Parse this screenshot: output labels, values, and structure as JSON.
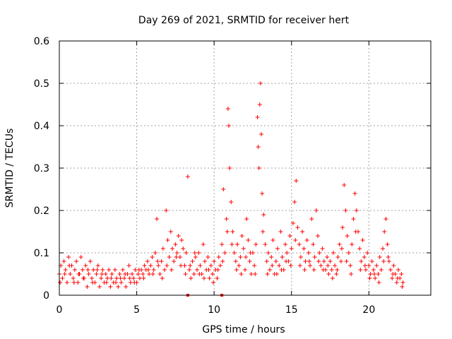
{
  "chart_data": {
    "type": "scatter",
    "title": "Day 269 of 2021, SRMTID for receiver hert",
    "xlabel": "GPS time / hours",
    "ylabel": "SRMTID / TECUs",
    "xlim": [
      0,
      24
    ],
    "ylim": [
      0,
      0.6
    ],
    "xticks": [
      0,
      5,
      10,
      15,
      20
    ],
    "yticks": [
      0,
      0.1,
      0.2,
      0.3,
      0.4,
      0.5,
      0.6
    ],
    "xtick_labels": [
      "0",
      "5",
      "10",
      "15",
      "20"
    ],
    "ytick_labels": [
      "0",
      "0.1",
      "0.2",
      "0.3",
      "0.4",
      "0.5",
      "0.6"
    ],
    "grid": true,
    "marker": "+",
    "series_color": "#ff0000",
    "series": [
      {
        "name": "SRMTID",
        "points": [
          [
            0.0,
            0.05
          ],
          [
            0.1,
            0.07
          ],
          [
            0.2,
            0.04
          ],
          [
            0.3,
            0.08
          ],
          [
            0.4,
            0.06
          ],
          [
            0.5,
            0.03
          ],
          [
            0.6,
            0.09
          ],
          [
            0.7,
            0.05
          ],
          [
            0.8,
            0.07
          ],
          [
            0.9,
            0.04
          ],
          [
            1.0,
            0.06
          ],
          [
            1.1,
            0.08
          ],
          [
            1.2,
            0.03
          ],
          [
            1.3,
            0.05
          ],
          [
            1.4,
            0.09
          ],
          [
            1.5,
            0.06
          ],
          [
            1.6,
            0.04
          ],
          [
            1.7,
            0.07
          ],
          [
            1.8,
            0.02
          ],
          [
            1.9,
            0.05
          ],
          [
            2.0,
            0.08
          ],
          [
            2.1,
            0.04
          ],
          [
            2.2,
            0.06
          ],
          [
            2.3,
            0.03
          ],
          [
            2.4,
            0.05
          ],
          [
            2.5,
            0.07
          ],
          [
            2.6,
            0.02
          ],
          [
            2.7,
            0.04
          ],
          [
            2.8,
            0.06
          ],
          [
            2.9,
            0.03
          ],
          [
            3.0,
            0.05
          ],
          [
            3.1,
            0.04
          ],
          [
            3.2,
            0.06
          ],
          [
            3.3,
            0.02
          ],
          [
            3.4,
            0.05
          ],
          [
            3.5,
            0.03
          ],
          [
            3.6,
            0.06
          ],
          [
            3.7,
            0.04
          ],
          [
            3.8,
            0.02
          ],
          [
            3.9,
            0.05
          ],
          [
            4.0,
            0.03
          ],
          [
            4.1,
            0.06
          ],
          [
            4.2,
            0.04
          ],
          [
            4.3,
            0.02
          ],
          [
            4.4,
            0.05
          ],
          [
            4.5,
            0.07
          ],
          [
            4.6,
            0.03
          ],
          [
            4.7,
            0.05
          ],
          [
            4.8,
            0.04
          ],
          [
            4.9,
            0.06
          ],
          [
            5.0,
            0.03
          ],
          [
            5.1,
            0.05
          ],
          [
            5.2,
            0.04
          ],
          [
            5.3,
            0.06
          ],
          [
            5.4,
            0.05
          ],
          [
            5.5,
            0.07
          ],
          [
            5.6,
            0.06
          ],
          [
            5.7,
            0.08
          ],
          [
            5.8,
            0.05
          ],
          [
            5.9,
            0.07
          ],
          [
            6.0,
            0.09
          ],
          [
            6.1,
            0.06
          ],
          [
            6.2,
            0.1
          ],
          [
            6.3,
            0.18
          ],
          [
            6.4,
            0.07
          ],
          [
            6.5,
            0.05
          ],
          [
            6.6,
            0.08
          ],
          [
            6.7,
            0.11
          ],
          [
            6.8,
            0.06
          ],
          [
            6.9,
            0.2
          ],
          [
            7.0,
            0.13
          ],
          [
            7.1,
            0.09
          ],
          [
            7.2,
            0.15
          ],
          [
            7.3,
            0.11
          ],
          [
            7.4,
            0.08
          ],
          [
            7.5,
            0.12
          ],
          [
            7.6,
            0.1
          ],
          [
            7.7,
            0.14
          ],
          [
            7.8,
            0.09
          ],
          [
            7.9,
            0.13
          ],
          [
            8.0,
            0.11
          ],
          [
            8.1,
            0.07
          ],
          [
            8.2,
            0.1
          ],
          [
            8.3,
            0.28
          ],
          [
            8.4,
            0.06
          ],
          [
            8.5,
            0.04
          ],
          [
            8.6,
            0.08
          ],
          [
            8.7,
            0.05
          ],
          [
            8.8,
            0.09
          ],
          [
            8.9,
            0.06
          ],
          [
            9.0,
            0.1
          ],
          [
            9.1,
            0.07
          ],
          [
            9.2,
            0.05
          ],
          [
            9.3,
            0.12
          ],
          [
            9.4,
            0.08
          ],
          [
            9.5,
            0.06
          ],
          [
            9.6,
            0.09
          ],
          [
            9.7,
            0.04
          ],
          [
            9.8,
            0.07
          ],
          [
            9.9,
            0.05
          ],
          [
            10.0,
            0.08
          ],
          [
            10.1,
            0.06
          ],
          [
            10.2,
            0.04
          ],
          [
            10.3,
            0.09
          ],
          [
            10.4,
            0.07
          ],
          [
            10.5,
            0.12
          ],
          [
            10.6,
            0.25
          ],
          [
            10.7,
            0.1
          ],
          [
            10.8,
            0.18
          ],
          [
            10.9,
            0.44
          ],
          [
            10.95,
            0.4
          ],
          [
            11.0,
            0.3
          ],
          [
            11.1,
            0.22
          ],
          [
            11.2,
            0.15
          ],
          [
            11.3,
            0.1
          ],
          [
            11.4,
            0.08
          ],
          [
            11.5,
            0.12
          ],
          [
            11.6,
            0.07
          ],
          [
            11.7,
            0.09
          ],
          [
            11.8,
            0.14
          ],
          [
            11.9,
            0.11
          ],
          [
            12.0,
            0.06
          ],
          [
            12.1,
            0.18
          ],
          [
            12.2,
            0.13
          ],
          [
            12.3,
            0.08
          ],
          [
            12.4,
            0.05
          ],
          [
            12.5,
            0.1
          ],
          [
            12.6,
            0.07
          ],
          [
            12.7,
            0.12
          ],
          [
            12.8,
            0.42
          ],
          [
            12.85,
            0.35
          ],
          [
            12.9,
            0.3
          ],
          [
            12.95,
            0.45
          ],
          [
            13.0,
            0.5
          ],
          [
            13.05,
            0.38
          ],
          [
            13.1,
            0.24
          ],
          [
            13.2,
            0.19
          ],
          [
            13.3,
            0.12
          ],
          [
            13.4,
            0.08
          ],
          [
            13.5,
            0.1
          ],
          [
            13.6,
            0.06
          ],
          [
            13.7,
            0.09
          ],
          [
            13.8,
            0.13
          ],
          [
            13.9,
            0.05
          ],
          [
            14.0,
            0.08
          ],
          [
            14.1,
            0.11
          ],
          [
            14.2,
            0.07
          ],
          [
            14.3,
            0.15
          ],
          [
            14.4,
            0.09
          ],
          [
            14.5,
            0.06
          ],
          [
            14.6,
            0.12
          ],
          [
            14.7,
            0.1
          ],
          [
            14.8,
            0.08
          ],
          [
            14.9,
            0.14
          ],
          [
            15.0,
            0.11
          ],
          [
            15.1,
            0.17
          ],
          [
            15.2,
            0.22
          ],
          [
            15.3,
            0.27
          ],
          [
            15.4,
            0.16
          ],
          [
            15.5,
            0.12
          ],
          [
            15.6,
            0.09
          ],
          [
            15.7,
            0.15
          ],
          [
            15.8,
            0.11
          ],
          [
            15.9,
            0.08
          ],
          [
            16.0,
            0.13
          ],
          [
            16.1,
            0.1
          ],
          [
            16.2,
            0.07
          ],
          [
            16.3,
            0.18
          ],
          [
            16.4,
            0.12
          ],
          [
            16.5,
            0.09
          ],
          [
            16.6,
            0.2
          ],
          [
            16.7,
            0.14
          ],
          [
            16.8,
            0.1
          ],
          [
            16.9,
            0.07
          ],
          [
            17.0,
            0.11
          ],
          [
            17.1,
            0.08
          ],
          [
            17.2,
            0.06
          ],
          [
            17.3,
            0.09
          ],
          [
            17.4,
            0.05
          ],
          [
            17.5,
            0.08
          ],
          [
            17.6,
            0.06
          ],
          [
            17.7,
            0.1
          ],
          [
            17.8,
            0.07
          ],
          [
            17.9,
            0.05
          ],
          [
            18.0,
            0.09
          ],
          [
            18.1,
            0.12
          ],
          [
            18.2,
            0.08
          ],
          [
            18.3,
            0.16
          ],
          [
            18.4,
            0.26
          ],
          [
            18.5,
            0.2
          ],
          [
            18.6,
            0.14
          ],
          [
            18.7,
            0.1
          ],
          [
            18.8,
            0.07
          ],
          [
            18.9,
            0.12
          ],
          [
            19.0,
            0.18
          ],
          [
            19.1,
            0.24
          ],
          [
            19.2,
            0.2
          ],
          [
            19.3,
            0.15
          ],
          [
            19.4,
            0.11
          ],
          [
            19.5,
            0.08
          ],
          [
            19.6,
            0.13
          ],
          [
            19.7,
            0.09
          ],
          [
            19.8,
            0.06
          ],
          [
            19.9,
            0.1
          ],
          [
            20.0,
            0.07
          ],
          [
            20.1,
            0.05
          ],
          [
            20.2,
            0.08
          ],
          [
            20.3,
            0.06
          ],
          [
            20.4,
            0.04
          ],
          [
            20.5,
            0.07
          ],
          [
            20.6,
            0.05
          ],
          [
            20.7,
            0.09
          ],
          [
            20.8,
            0.06
          ],
          [
            20.9,
            0.11
          ],
          [
            21.0,
            0.15
          ],
          [
            21.1,
            0.18
          ],
          [
            21.2,
            0.12
          ],
          [
            21.3,
            0.08
          ],
          [
            21.4,
            0.06
          ],
          [
            21.5,
            0.04
          ],
          [
            21.6,
            0.07
          ],
          [
            21.7,
            0.05
          ],
          [
            21.8,
            0.03
          ],
          [
            21.9,
            0.06
          ],
          [
            22.0,
            0.04
          ],
          [
            22.1,
            0.05
          ],
          [
            22.2,
            0.03
          ],
          [
            0.05,
            0.03
          ],
          [
            0.35,
            0.05
          ],
          [
            0.65,
            0.07
          ],
          [
            0.95,
            0.03
          ],
          [
            1.25,
            0.05
          ],
          [
            1.55,
            0.04
          ],
          [
            1.85,
            0.06
          ],
          [
            2.15,
            0.03
          ],
          [
            2.45,
            0.06
          ],
          [
            2.75,
            0.05
          ],
          [
            3.05,
            0.03
          ],
          [
            3.35,
            0.04
          ],
          [
            3.65,
            0.03
          ],
          [
            3.95,
            0.04
          ],
          [
            4.25,
            0.05
          ],
          [
            4.55,
            0.04
          ],
          [
            4.85,
            0.03
          ],
          [
            5.15,
            0.06
          ],
          [
            5.45,
            0.04
          ],
          [
            5.75,
            0.06
          ],
          [
            6.05,
            0.05
          ],
          [
            6.35,
            0.08
          ],
          [
            6.65,
            0.04
          ],
          [
            6.95,
            0.07
          ],
          [
            7.25,
            0.06
          ],
          [
            7.55,
            0.09
          ],
          [
            7.85,
            0.07
          ],
          [
            8.15,
            0.05
          ],
          [
            8.45,
            0.07
          ],
          [
            8.75,
            0.1
          ],
          [
            9.05,
            0.05
          ],
          [
            9.35,
            0.04
          ],
          [
            9.65,
            0.06
          ],
          [
            9.95,
            0.03
          ],
          [
            10.25,
            0.06
          ],
          [
            10.55,
            0.08
          ],
          [
            10.85,
            0.15
          ],
          [
            11.15,
            0.12
          ],
          [
            11.45,
            0.06
          ],
          [
            11.75,
            0.05
          ],
          [
            12.05,
            0.09
          ],
          [
            12.35,
            0.1
          ],
          [
            12.65,
            0.05
          ],
          [
            13.15,
            0.15
          ],
          [
            13.45,
            0.05
          ],
          [
            13.75,
            0.07
          ],
          [
            14.05,
            0.05
          ],
          [
            14.35,
            0.06
          ],
          [
            14.65,
            0.08
          ],
          [
            14.95,
            0.07
          ],
          [
            15.25,
            0.13
          ],
          [
            15.55,
            0.07
          ],
          [
            15.85,
            0.06
          ],
          [
            16.15,
            0.08
          ],
          [
            16.45,
            0.06
          ],
          [
            16.75,
            0.08
          ],
          [
            17.05,
            0.06
          ],
          [
            17.35,
            0.07
          ],
          [
            17.65,
            0.04
          ],
          [
            17.95,
            0.06
          ],
          [
            18.25,
            0.11
          ],
          [
            18.55,
            0.08
          ],
          [
            18.85,
            0.05
          ],
          [
            19.15,
            0.15
          ],
          [
            19.45,
            0.06
          ],
          [
            19.75,
            0.07
          ],
          [
            20.05,
            0.04
          ],
          [
            20.35,
            0.05
          ],
          [
            20.65,
            0.03
          ],
          [
            20.95,
            0.08
          ],
          [
            21.25,
            0.09
          ],
          [
            21.55,
            0.05
          ],
          [
            21.85,
            0.04
          ],
          [
            22.15,
            0.02
          ]
        ]
      }
    ],
    "zero_markers_x": [
      8.3,
      10.5
    ]
  }
}
